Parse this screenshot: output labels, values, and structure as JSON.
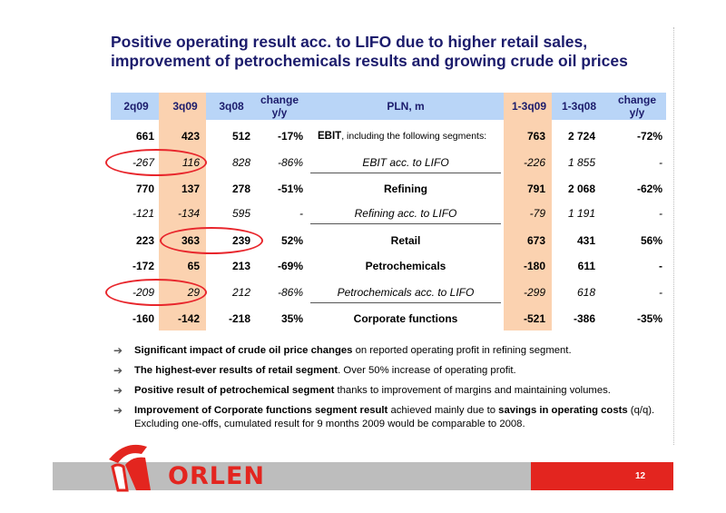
{
  "title": {
    "line1": "Positive operating result acc. to LIFO due to higher retail sales,",
    "line2": "improvement of petrochemicals results and growing crude oil prices"
  },
  "table": {
    "headers": {
      "q2": "2q09",
      "q3": "3q09",
      "q3prev": "3q08",
      "change_qq": "change y/y",
      "label": "PLN, m",
      "ytd": "1-3q09",
      "ytdprev": "1-3q08",
      "change_ytd": "change y/y"
    },
    "rows": [
      {
        "cells": [
          "661",
          "423",
          "512",
          "-17%"
        ],
        "label_bold": "EBIT",
        "label_rest": ", including the following segments:",
        "ytd": [
          "763",
          "2 724",
          "-72%"
        ]
      },
      {
        "cells": [
          "-267",
          "116",
          "828",
          "-86%"
        ],
        "label_bold": "",
        "label_rest": "EBIT acc. to LIFO",
        "ytd": [
          "-226",
          "1 855",
          "-"
        ]
      },
      {
        "cells": [
          "770",
          "137",
          "278",
          "-51%"
        ],
        "label_bold": "Refining",
        "label_rest": "",
        "ytd": [
          "791",
          "2 068",
          "-62%"
        ]
      },
      {
        "cells": [
          "-121",
          "-134",
          "595",
          "-"
        ],
        "label_bold": "",
        "label_rest": "Refining acc. to LIFO",
        "ytd": [
          "-79",
          "1 191",
          "-"
        ]
      },
      {
        "cells": [
          "223",
          "363",
          "239",
          "52%"
        ],
        "label_bold": "Retail",
        "label_rest": "",
        "ytd": [
          "673",
          "431",
          "56%"
        ]
      },
      {
        "cells": [
          "-172",
          "65",
          "213",
          "-69%"
        ],
        "label_bold": "Petrochemicals",
        "label_rest": "",
        "ytd": [
          "-180",
          "611",
          "-"
        ]
      },
      {
        "cells": [
          "-209",
          "29",
          "212",
          "-86%"
        ],
        "label_bold": "",
        "label_rest": "Petrochemicals acc. to LIFO",
        "ytd": [
          "-299",
          "618",
          "-"
        ]
      },
      {
        "cells": [
          "-160",
          "-142",
          "-218",
          "35%"
        ],
        "label_bold": "Corporate functions",
        "label_rest": "",
        "ytd": [
          "-521",
          "-386",
          "-35%"
        ]
      }
    ]
  },
  "bullets": [
    {
      "bold": "Significant impact of crude oil price changes",
      "rest": " on reported operating profit in refining segment.",
      "bold2": "",
      "rest2": ""
    },
    {
      "bold": "The highest-ever results of retail segment",
      "rest": ". Over 50% increase of operating profit.",
      "bold2": "",
      "rest2": ""
    },
    {
      "bold": "Positive result of petrochemical segment",
      "rest": " thanks to improvement of margins and maintaining volumes.",
      "bold2": "",
      "rest2": ""
    },
    {
      "bold": "Improvement of Corporate functions segment result",
      "rest": " achieved mainly due to ",
      "bold2": "savings in operating costs",
      "rest2": " (q/q). Excluding one-offs, cumulated result for 9 months 2009 would be comparable to 2008."
    }
  ],
  "footer": {
    "brand": "ORLEN",
    "page": "12"
  },
  "colors": {
    "title": "#1c1c6c",
    "header_bg": "#b9d5f7",
    "highlight": "#fbd2b0",
    "brand_red": "#e3251f",
    "footer_gray": "#bdbdbd"
  },
  "icons": [
    "arrow-right-icon",
    "orlen-eagle-icon"
  ]
}
